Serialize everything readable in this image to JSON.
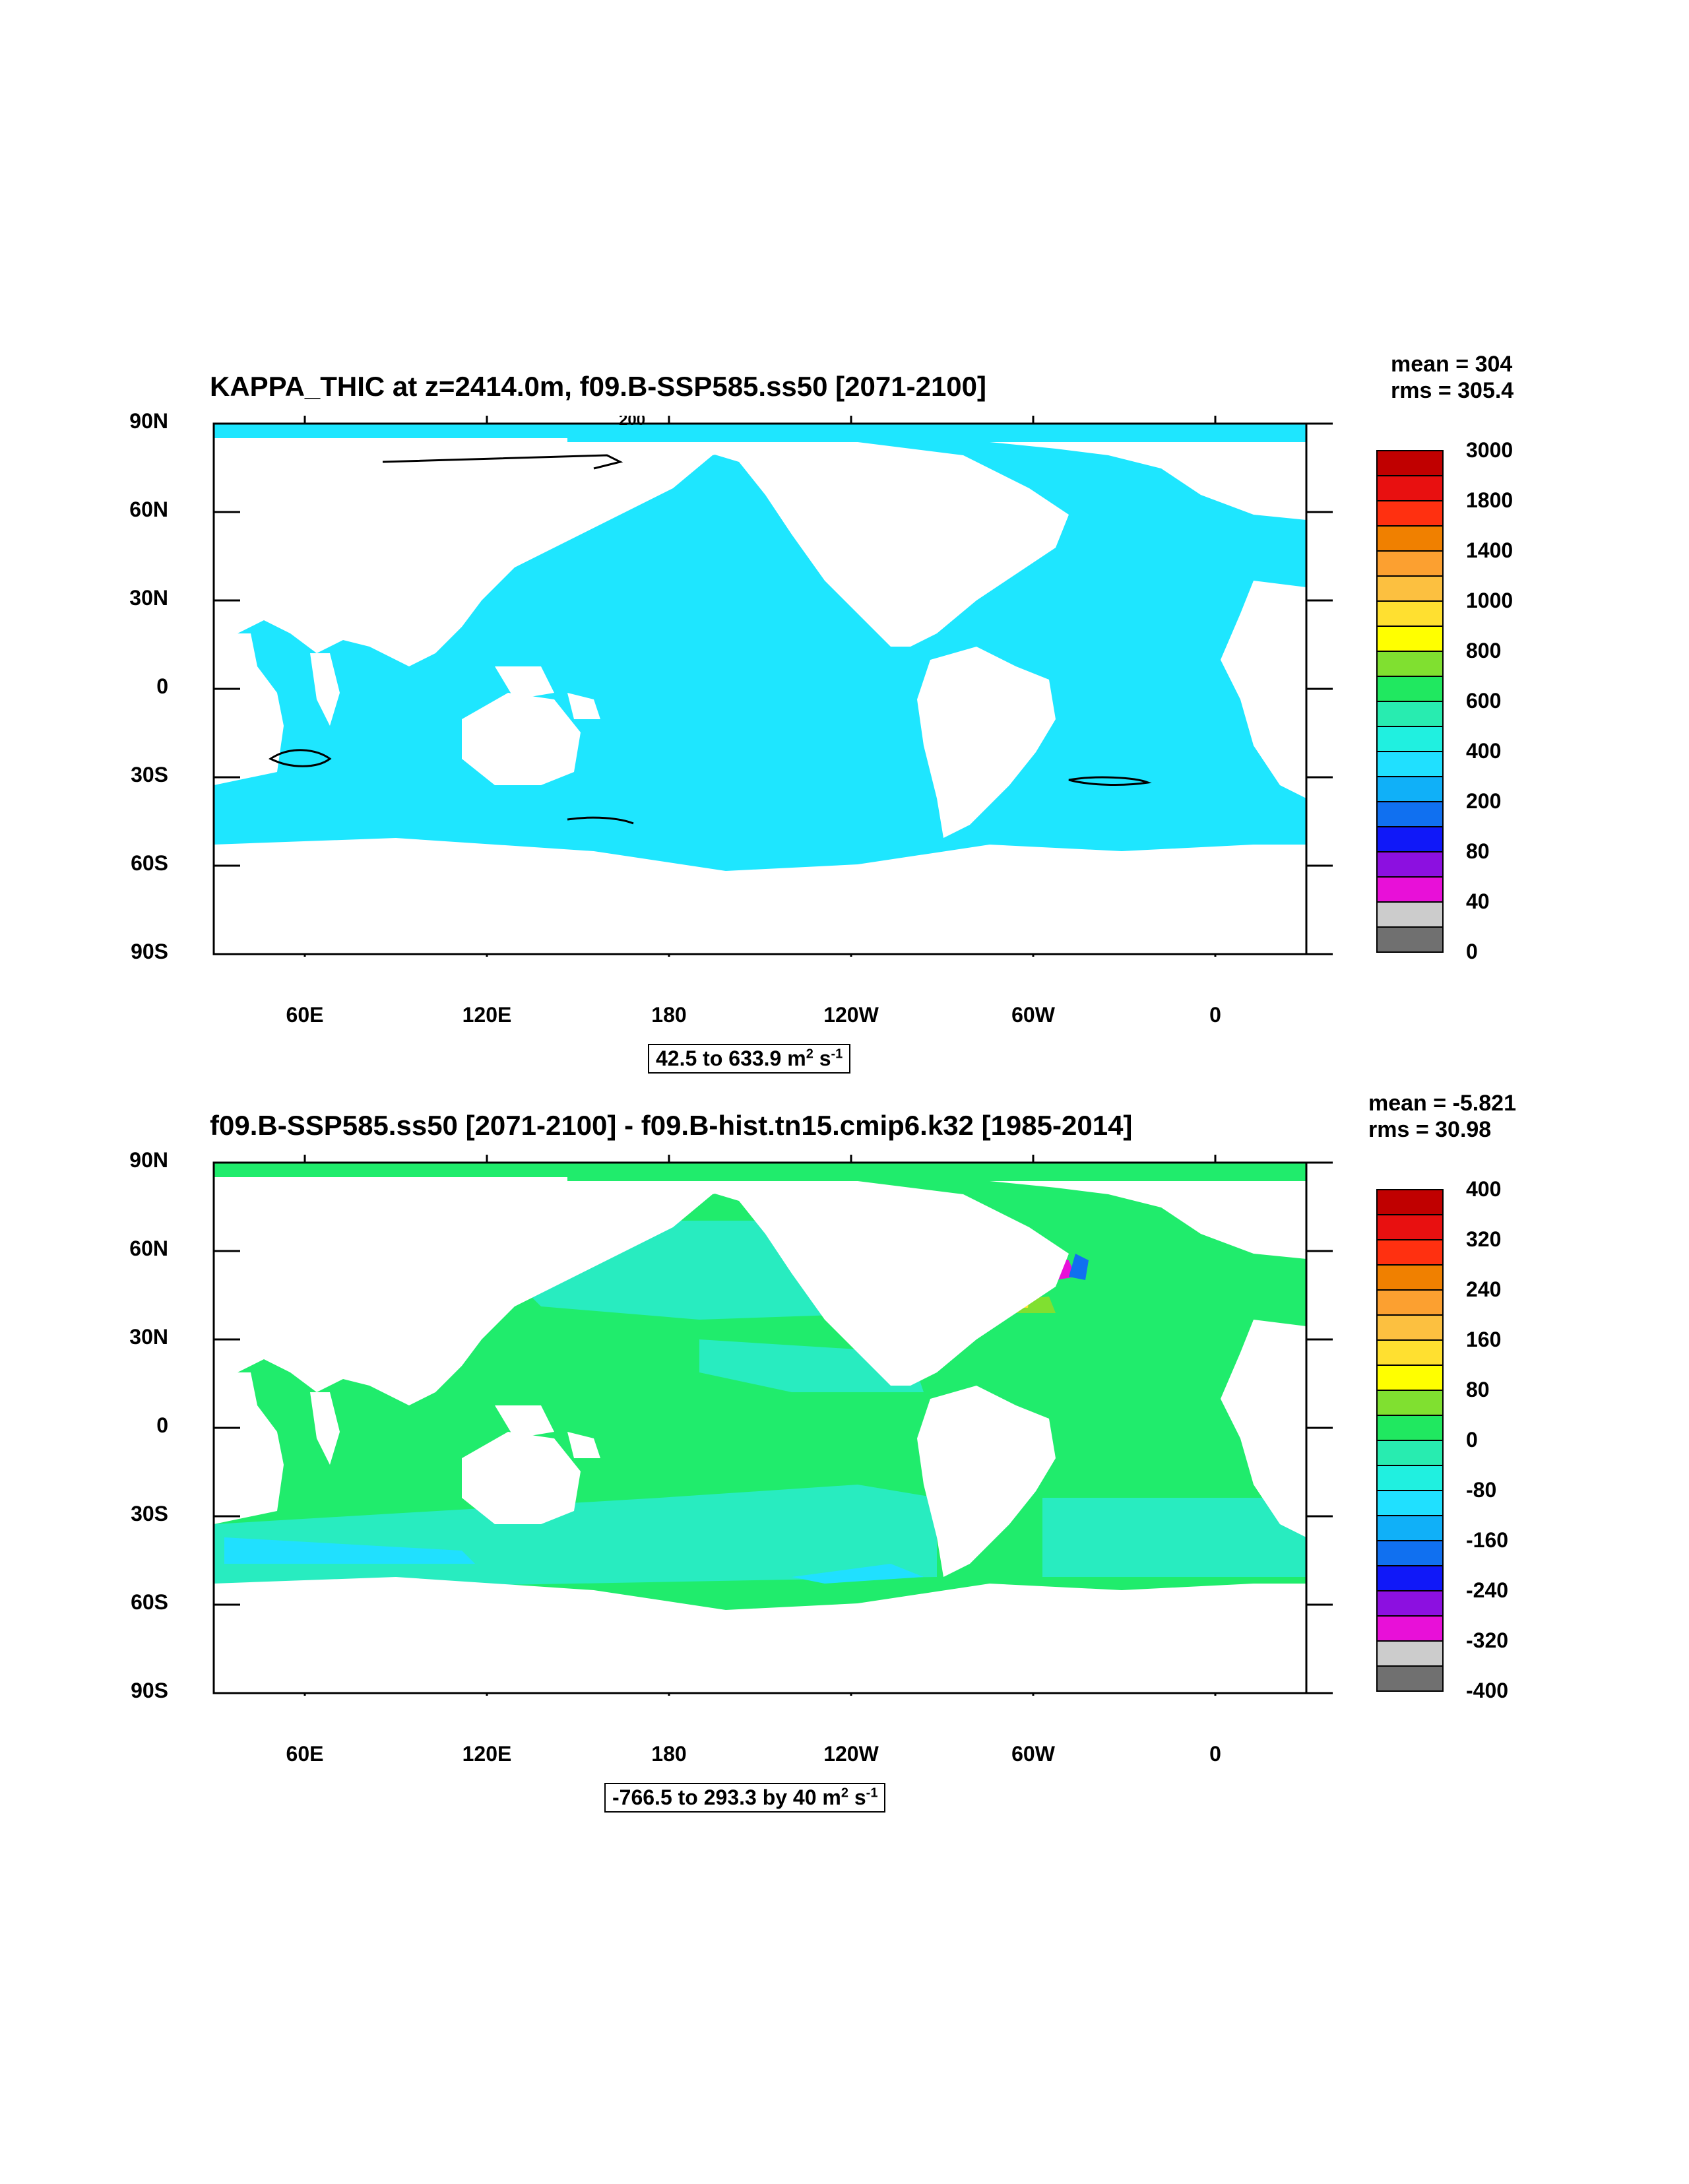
{
  "panels": [
    {
      "title": "KAPPA_THIC at z=2414.0m, f09.B-SSP585.ss50 [2071-2100]",
      "stats": {
        "mean": "mean = 304",
        "rms": "rms = 305.4"
      },
      "lat_labels": [
        "90N",
        "60N",
        "30N",
        "0",
        "30S",
        "60S",
        "90S"
      ],
      "lon_labels": [
        "60E",
        "120E",
        "180",
        "120W",
        "60W",
        "0"
      ],
      "range": {
        "text": "42.5 to 633.9 m",
        "exp1": "2",
        "mid": " s",
        "exp2": "-1"
      },
      "contour_label": "200",
      "colorbar": {
        "labels": [
          "3000",
          "1800",
          "1400",
          "1000",
          "800",
          "600",
          "400",
          "200",
          "80",
          "40",
          "0"
        ],
        "colors": [
          "#c00000",
          "#e81010",
          "#ff3010",
          "#f08000",
          "#fca030",
          "#fcc040",
          "#ffe030",
          "#ffff00",
          "#80e030",
          "#20e860",
          "#28ecb0",
          "#20f0e0",
          "#20e0ff",
          "#10b0f8",
          "#1070f0",
          "#1018f8",
          "#8c10e0",
          "#e810d8",
          "#cccccc",
          "#707070"
        ]
      },
      "map_colors": {
        "ocean": "#1ee6ff",
        "ocean_alt": "#1ee6ff",
        "contour": "#000000"
      }
    },
    {
      "title": "f09.B-SSP585.ss50 [2071-2100] - f09.B-hist.tn15.cmip6.k32 [1985-2014]",
      "stats": {
        "mean": "mean = -5.821",
        "rms": "rms = 30.98"
      },
      "lat_labels": [
        "90N",
        "60N",
        "30N",
        "0",
        "30S",
        "60S",
        "90S"
      ],
      "lon_labels": [
        "60E",
        "120E",
        "180",
        "120W",
        "60W",
        "0"
      ],
      "range": {
        "text": "-766.5 to 293.3 by 40 m",
        "exp1": "2",
        "mid": " s",
        "exp2": "-1"
      },
      "colorbar": {
        "labels": [
          "400",
          "320",
          "240",
          "160",
          "80",
          "0",
          "-80",
          "-160",
          "-240",
          "-320",
          "-400"
        ],
        "colors": [
          "#c00000",
          "#e81010",
          "#ff3010",
          "#f08000",
          "#fca030",
          "#fcc040",
          "#ffe030",
          "#ffff00",
          "#80e030",
          "#20e860",
          "#28ecb0",
          "#20f0e0",
          "#20e0ff",
          "#10b0f8",
          "#1070f0",
          "#1018f8",
          "#8c10e0",
          "#e810d8",
          "#cccccc",
          "#707070"
        ]
      },
      "map_colors": {
        "ocean": "#20ec6c",
        "ocean_alt": "#28ecc0",
        "contour": "none"
      }
    }
  ]
}
